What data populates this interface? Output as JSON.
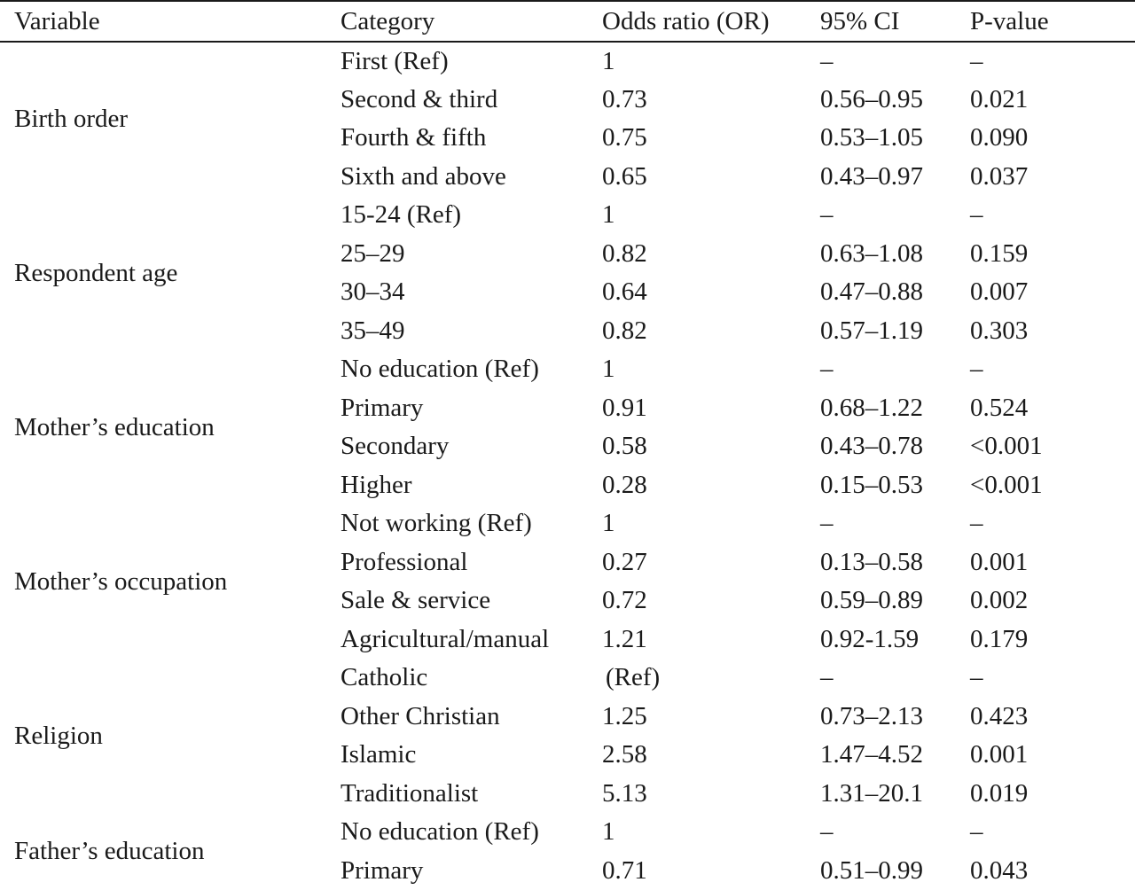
{
  "table": {
    "headers": {
      "variable": "Variable",
      "category": "Category",
      "odds_ratio": "Odds ratio (OR)",
      "ci": "95% CI",
      "p_value": "P-value"
    },
    "groups": [
      {
        "variable": "Birth order",
        "rows": [
          {
            "category": "First (Ref)",
            "or": "1",
            "ci": "–",
            "p": "–"
          },
          {
            "category": "Second & third",
            "or": "0.73",
            "ci": "0.56–0.95",
            "p": "0.021"
          },
          {
            "category": "Fourth & fifth",
            "or": "0.75",
            "ci": "0.53–1.05",
            "p": "0.090"
          },
          {
            "category": "Sixth and above",
            "or": "0.65",
            "ci": "0.43–0.97",
            "p": "0.037"
          }
        ]
      },
      {
        "variable": "Respondent age",
        "rows": [
          {
            "category": "15-24 (Ref)",
            "or": "1",
            "ci": "–",
            "p": "–"
          },
          {
            "category": "25–29",
            "or": "0.82",
            "ci": "0.63–1.08",
            "p": "0.159"
          },
          {
            "category": "30–34",
            "or": "0.64",
            "ci": "0.47–0.88",
            "p": "0.007"
          },
          {
            "category": "35–49",
            "or": "0.82",
            "ci": "0.57–1.19",
            "p": "0.303"
          }
        ]
      },
      {
        "variable": "Mother’s education",
        "rows": [
          {
            "category": "No education (Ref)",
            "or": "1",
            "ci": "–",
            "p": "–"
          },
          {
            "category": "Primary",
            "or": "0.91",
            "ci": "0.68–1.22",
            "p": "0.524"
          },
          {
            "category": "Secondary",
            "or": "0.58",
            "ci": "0.43–0.78",
            "p": "<0.001"
          },
          {
            "category": "Higher",
            "or": "0.28",
            "ci": "0.15–0.53",
            "p": "<0.001"
          }
        ]
      },
      {
        "variable": "Mother’s occupation",
        "rows": [
          {
            "category": "Not working (Ref)",
            "or": "1",
            "ci": "–",
            "p": "–"
          },
          {
            "category": "Professional",
            "or": "0.27",
            "ci": "0.13–0.58",
            "p": "0.001"
          },
          {
            "category": "Sale & service",
            "or": "0.72",
            "ci": "0.59–0.89",
            "p": "0.002"
          },
          {
            "category": "Agricultural/manual",
            "or": "1.21",
            "ci": "0.92-1.59",
            "p": "0.179"
          }
        ]
      },
      {
        "variable": "Religion",
        "rows": [
          {
            "category": "Catholic",
            "or": "(Ref)",
            "ci": "–",
            "p": "–"
          },
          {
            "category": "Other Christian",
            "or": "1.25",
            "ci": "0.73–2.13",
            "p": "0.423"
          },
          {
            "category": "Islamic",
            "or": "2.58",
            "ci": "1.47–4.52",
            "p": "0.001"
          },
          {
            "category": "Traditionalist",
            "or": "5.13",
            "ci": "1.31–20.1",
            "p": "0.019"
          }
        ]
      },
      {
        "variable": "Father’s education",
        "rows": [
          {
            "category": "No education (Ref)",
            "or": "1",
            "ci": "–",
            "p": "–"
          },
          {
            "category": "Primary",
            "or": "0.71",
            "ci": "0.51–0.99",
            "p": "0.043"
          }
        ]
      }
    ]
  }
}
